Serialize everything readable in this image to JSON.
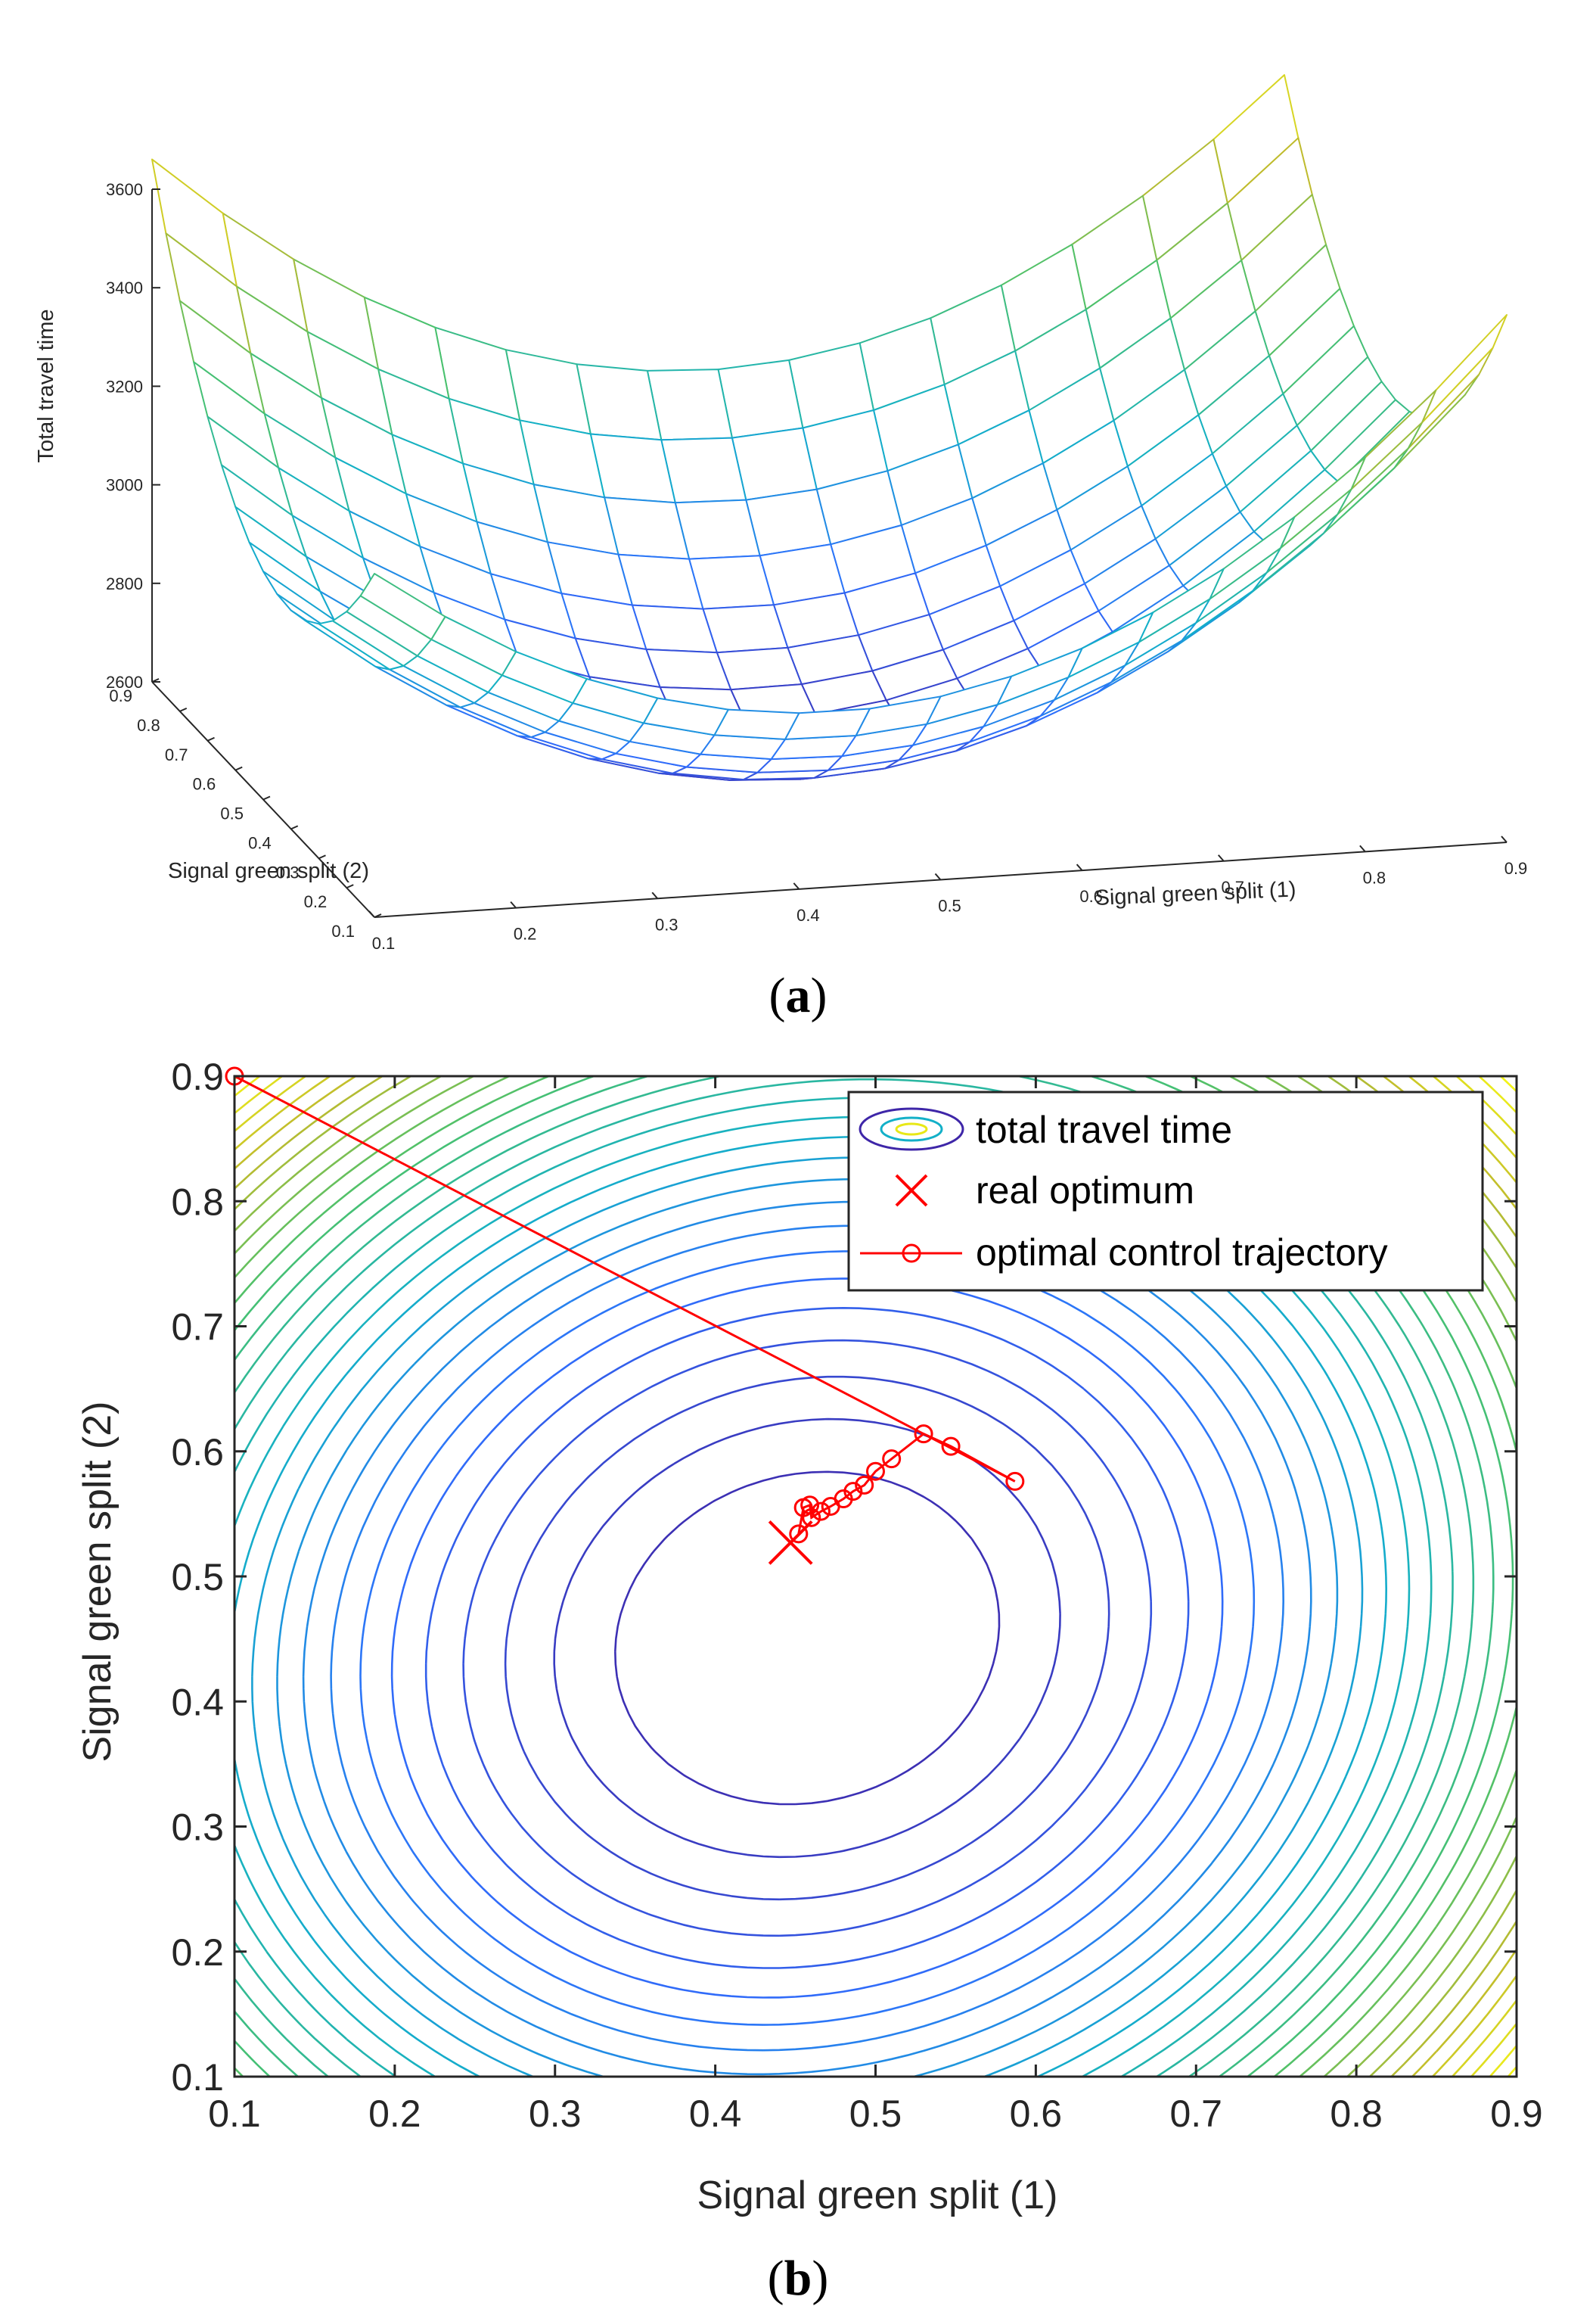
{
  "figure": {
    "panel_a_label": {
      "open": "(",
      "letter": "a",
      "close": ")"
    },
    "panel_b_label": {
      "open": "(",
      "letter": "b",
      "close": ")"
    }
  },
  "chart_data": [
    {
      "type": "surface",
      "panel": "a",
      "xlabel": "Signal green split (1)",
      "ylabel": "Signal green split (2)",
      "zlabel": "Total travel time",
      "x_ticks": [
        "0.1",
        "0.2",
        "0.3",
        "0.4",
        "0.5",
        "0.6",
        "0.7",
        "0.8",
        "0.9"
      ],
      "y_ticks": [
        "0.1",
        "0.2",
        "0.3",
        "0.4",
        "0.5",
        "0.6",
        "0.7",
        "0.8",
        "0.9"
      ],
      "z_ticks": [
        "2600",
        "2800",
        "3000",
        "3200",
        "3400",
        "3600"
      ],
      "xlim": [
        0.1,
        0.9
      ],
      "ylim": [
        0.1,
        0.9
      ],
      "zlim": [
        2600,
        3600
      ],
      "grid": "17x17 mesh",
      "colormap": [
        "#3e26a8",
        "#2f6efd",
        "#13b0c8",
        "#4ac16d",
        "#c0bb2c",
        "#f9fb15"
      ],
      "surface_model": {
        "minimum": {
          "x": 0.45,
          "y": 0.53,
          "z": 2655
        },
        "corners": {
          "x0.1_y0.1": 3055,
          "x0.9_y0.1": 3310,
          "x0.9_y0.9": 3300,
          "x0.1_y0.9": 3655
        }
      }
    },
    {
      "type": "contour",
      "panel": "b",
      "xlabel": "Signal green split (1)",
      "ylabel": "Signal green split (2)",
      "xlim": [
        0.1,
        0.9
      ],
      "ylim": [
        0.1,
        0.9
      ],
      "x_ticks": [
        "0.1",
        "0.2",
        "0.3",
        "0.4",
        "0.5",
        "0.6",
        "0.7",
        "0.8",
        "0.9"
      ],
      "y_ticks": [
        "0.1",
        "0.2",
        "0.3",
        "0.4",
        "0.5",
        "0.6",
        "0.7",
        "0.8",
        "0.9"
      ],
      "contour_levels": 30,
      "legend": {
        "position": "top-right",
        "entries": [
          "total travel time",
          "real optimum",
          "optimal control trajectory"
        ]
      },
      "real_optimum": {
        "x": 0.447,
        "y": 0.527,
        "color": "#ff0000"
      },
      "trajectory": {
        "color": "#ff0000",
        "x": [
          0.1,
          0.587,
          0.547,
          0.53,
          0.51,
          0.5,
          0.493,
          0.486,
          0.48,
          0.472,
          0.466,
          0.46,
          0.459,
          0.455,
          0.452
        ],
        "y": [
          0.9,
          0.576,
          0.604,
          0.614,
          0.594,
          0.584,
          0.573,
          0.568,
          0.562,
          0.556,
          0.552,
          0.547,
          0.557,
          0.555,
          0.534
        ]
      }
    }
  ]
}
